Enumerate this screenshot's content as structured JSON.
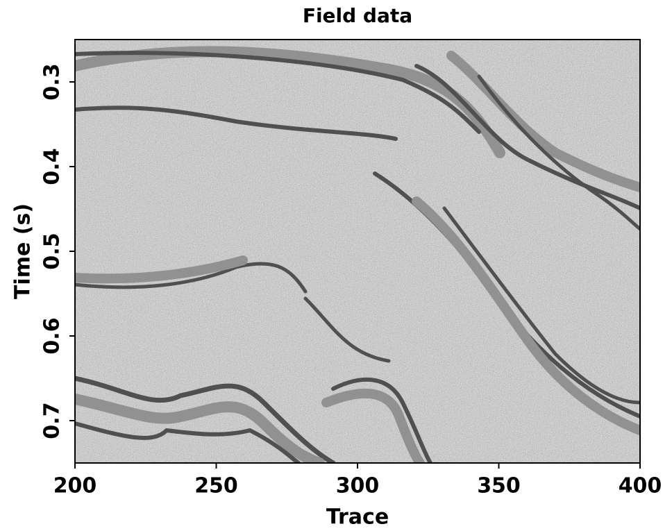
{
  "chart_data": {
    "type": "image",
    "title": "Field data",
    "x_label": "Trace",
    "y_label": "Time (s)",
    "xlim": [
      200,
      400
    ],
    "xticks": [
      200,
      250,
      300,
      350,
      400
    ],
    "ylim": [
      0.75,
      0.25
    ],
    "yticks": [
      0.3,
      0.4,
      0.5,
      0.6,
      0.7
    ],
    "colormap": "gray"
  }
}
